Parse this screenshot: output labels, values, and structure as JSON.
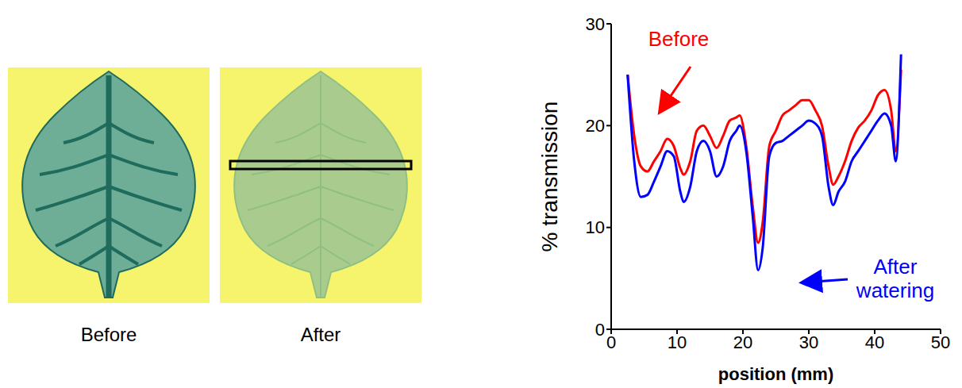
{
  "chart_data": {
    "type": "line",
    "x_label": "position (mm)",
    "y_label": "% transmission",
    "x": [
      2.5,
      3.5,
      4.5,
      5.5,
      6.5,
      7.5,
      8.5,
      9.5,
      10.5,
      11,
      12,
      13,
      14,
      15,
      16,
      17,
      18,
      19,
      19.5,
      20.5,
      21.5,
      22.3,
      23,
      24,
      25,
      26,
      27,
      28,
      29,
      30,
      31,
      32,
      33,
      33.7,
      34.5,
      35.5,
      36.5,
      37.5,
      38.5,
      39.5,
      40.5,
      41.5,
      42.5,
      43.2,
      44
    ],
    "series": [
      {
        "name": "Before",
        "color": "#ff0000",
        "values": [
          25,
          19,
          16,
          15.5,
          16.5,
          17.5,
          18.7,
          18,
          15.8,
          15.2,
          16.5,
          19.5,
          20,
          19,
          17.8,
          19,
          20.5,
          20.8,
          21,
          18,
          12,
          8.5,
          10.5,
          18,
          19.5,
          21,
          21.5,
          22,
          22.5,
          22.5,
          21.5,
          20,
          16,
          14.2,
          15,
          16.5,
          18.5,
          19.8,
          20.5,
          21.5,
          23,
          23.5,
          21.5,
          17.5,
          25.5
        ]
      },
      {
        "name": "After watering",
        "color": "#0000ff",
        "values": [
          25,
          16.5,
          13,
          13.2,
          14.5,
          16,
          17.5,
          17,
          13.5,
          12.5,
          14,
          17.5,
          18.5,
          17.5,
          15,
          16,
          18.5,
          19.5,
          20,
          17.5,
          11,
          5.8,
          8,
          17,
          18.3,
          18.5,
          19,
          19.5,
          20,
          20.5,
          20.2,
          19,
          14,
          12.2,
          13.5,
          14.5,
          16.5,
          17.5,
          18.5,
          19.5,
          20.5,
          21.2,
          20,
          16.5,
          27
        ]
      }
    ],
    "xlim": [
      0,
      50
    ],
    "xticks": [
      0,
      10,
      20,
      30,
      40,
      50
    ],
    "ylim": [
      0,
      30
    ],
    "yticks": [
      0,
      10,
      20,
      30
    ],
    "grid": false
  },
  "images": [
    {
      "caption": "Before"
    },
    {
      "caption": "After"
    }
  ]
}
